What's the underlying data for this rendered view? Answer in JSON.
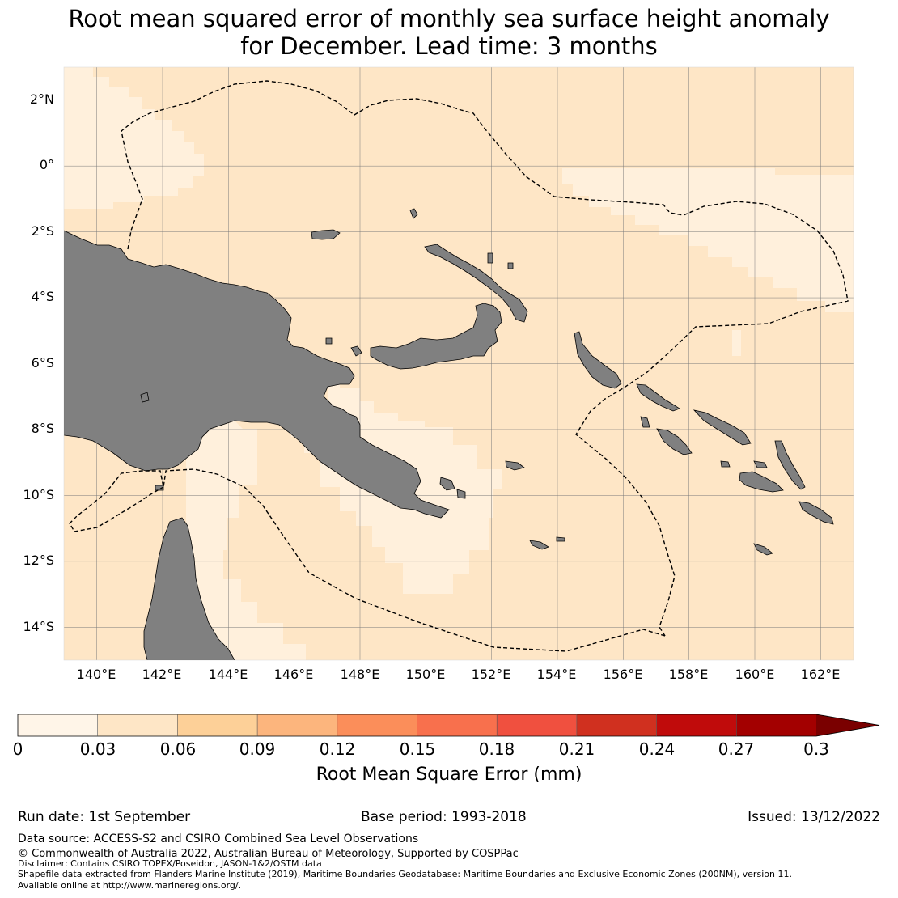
{
  "title": {
    "line1": "Root mean squared error of monthly sea surface height anomaly",
    "line2": "for December. Lead time: 3 months"
  },
  "map": {
    "region": "Papua New Guinea and Solomon Islands EEZ",
    "lon_range": [
      139,
      163
    ],
    "lat_range": [
      -15,
      3
    ],
    "lat_labels": [
      "2°N",
      "0°",
      "2°S",
      "4°S",
      "6°S",
      "8°S",
      "10°S",
      "12°S",
      "14°S"
    ],
    "lon_labels": [
      "140°E",
      "142°E",
      "144°E",
      "146°E",
      "148°E",
      "150°E",
      "152°E",
      "154°E",
      "156°E",
      "158°E",
      "160°E",
      "162°E"
    ],
    "colors": {
      "ocean_main": "#fee6c6",
      "ocean_low": "#fff0dc",
      "land": "#808080",
      "grid": "#7a7a7a",
      "eez_line": "#000000"
    }
  },
  "colorbar": {
    "ticks": [
      "0",
      "0.03",
      "0.06",
      "0.09",
      "0.12",
      "0.15",
      "0.18",
      "0.21",
      "0.24",
      "0.27",
      "0.3"
    ],
    "colors": [
      "#fff5e8",
      "#fee6c6",
      "#fdd098",
      "#fcb57d",
      "#fb8e5a",
      "#f8704d",
      "#f0503f",
      "#d0301f",
      "#c00b0b",
      "#a30000",
      "#7a0000"
    ],
    "label": "Root Mean Square Error (mm)"
  },
  "footer": {
    "run_date": "Run date: 1st September",
    "base_period": "Base period: 1993-2018",
    "issued": "Issued: 13/12/2022",
    "data_source": "Data source: ACCESS-S2 and CSIRO Combined Sea Level Observations",
    "copyright": "© Commonwealth of Australia 2022, Australian Bureau of Meteorology, Supported by COSPPac",
    "disclaimer": "Disclaimer: Contains CSIRO TOPEX/Poseidon, JASON-1&2/OSTM data",
    "shapefile": "Shapefile data extracted from Flanders Marine Institute (2019), Maritime Boundaries Geodatabase: Maritime Boundaries and Exclusive Economic Zones (200NM), version 11.",
    "available": "Available online at http://www.marineregions.org/."
  }
}
